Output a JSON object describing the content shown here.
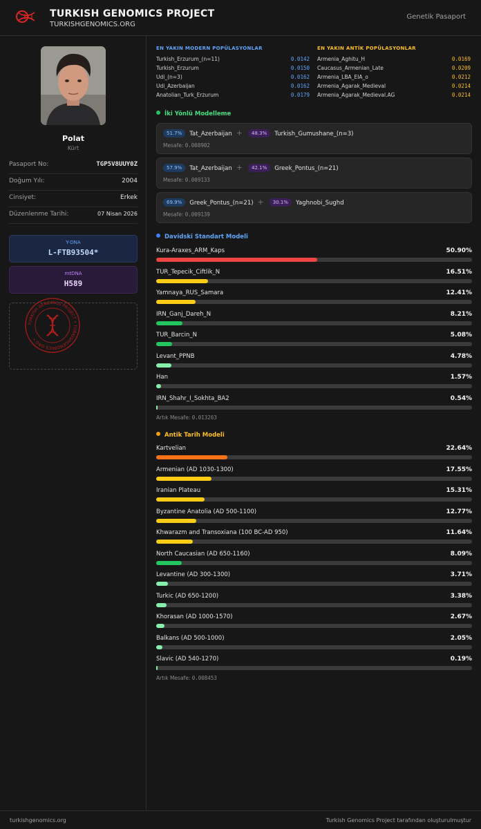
{
  "header": {
    "brand_title": "TURKISH GENOMICS PROJECT",
    "brand_url": "TURKISHGENOMICS.ORG",
    "right_label": "Genetik Pasaport"
  },
  "profile": {
    "name": "Polat",
    "ethnicity": "Kürt"
  },
  "info": [
    {
      "label": "Pasaport No:",
      "value": "TGP5V8UUY0Z"
    },
    {
      "label": "Doğum Yılı:",
      "value": "2004"
    },
    {
      "label": "Cinsiyet:",
      "value": "Erkek"
    },
    {
      "label": "Düzenlenme Tarihi:",
      "value": "07 Nisan 2026"
    }
  ],
  "ydna": {
    "label": "Y-DNA",
    "value": "L-FTB93504*"
  },
  "mtdna": {
    "label": "mtDNA",
    "value": "H589"
  },
  "seal": {
    "text": "TURKISH GENOMICS PROJECT • TURKISHGENOMICS.ORG •"
  },
  "modern": {
    "title": "EN YAKIN MODERN POPÜLASYONLAR",
    "rows": [
      {
        "name": "Turkish_Erzurum_(n=11)",
        "value": "0.0142"
      },
      {
        "name": "Turkish_Erzurum",
        "value": "0.0150"
      },
      {
        "name": "Udi_(n=3)",
        "value": "0.0162"
      },
      {
        "name": "Udi_Azerbaijan",
        "value": "0.0162"
      },
      {
        "name": "Anatolian_Turk_Erzurum",
        "value": "0.0179"
      }
    ]
  },
  "ancient": {
    "title": "EN YAKIN ANTİK POPÜLASYONLAR",
    "rows": [
      {
        "name": "Armenia_Aghitu_H",
        "value": "0.0169"
      },
      {
        "name": "Caucasus_Armenian_Late",
        "value": "0.0209"
      },
      {
        "name": "Armenia_LBA_EIA_o",
        "value": "0.0212"
      },
      {
        "name": "Armenia_Agarak_Medieval",
        "value": "0.0214"
      },
      {
        "name": "Armenia_Agarak_Medieval.AG",
        "value": "0.0214"
      }
    ]
  },
  "two_way": {
    "title": "İki Yönlü Modelleme",
    "color": "#22c55e",
    "cards": [
      {
        "p1": "51.7%",
        "n1": "Tat_Azerbaijan",
        "p2": "48.3%",
        "n2": "Turkish_Gumushane_(n=3)",
        "dist_label": "Mesafe:",
        "dist": "0.008902"
      },
      {
        "p1": "57.9%",
        "n1": "Tat_Azerbaijan",
        "p2": "42.1%",
        "n2": "Greek_Pontus_(n=21)",
        "dist_label": "Mesafe:",
        "dist": "0.009133"
      },
      {
        "p1": "69.9%",
        "n1": "Greek_Pontus_(n=21)",
        "p2": "30.1%",
        "n2": "Yaghnobi_Sughd",
        "dist_label": "Mesafe:",
        "dist": "0.009139"
      }
    ]
  },
  "davidski": {
    "title": "Davidski Standart Modeli",
    "color": "#3b82f6",
    "residual_label": "Artık Mesafe:",
    "residual": "0.013263",
    "items": [
      {
        "name": "Kura-Araxes_ARM_Kaps",
        "value": 50.9,
        "label": "50.90%",
        "color": "#ef4444"
      },
      {
        "name": "TUR_Tepecik_Ciftlik_N",
        "value": 16.51,
        "label": "16.51%",
        "color": "#facc15"
      },
      {
        "name": "Yamnaya_RUS_Samara",
        "value": 12.41,
        "label": "12.41%",
        "color": "#facc15"
      },
      {
        "name": "IRN_Ganj_Dareh_N",
        "value": 8.21,
        "label": "8.21%",
        "color": "#22c55e"
      },
      {
        "name": "TUR_Barcin_N",
        "value": 5.08,
        "label": "5.08%",
        "color": "#22c55e"
      },
      {
        "name": "Levant_PPNB",
        "value": 4.78,
        "label": "4.78%",
        "color": "#86efac"
      },
      {
        "name": "Han",
        "value": 1.57,
        "label": "1.57%",
        "color": "#86efac"
      },
      {
        "name": "IRN_Shahr_I_Sokhta_BA2",
        "value": 0.54,
        "label": "0.54%",
        "color": "#86efac"
      }
    ]
  },
  "antik": {
    "title": "Antik Tarih Modeli",
    "color": "#f59e0b",
    "residual_label": "Artık Mesafe:",
    "residual": "0.008453",
    "items": [
      {
        "name": "Kartvelian",
        "value": 22.64,
        "label": "22.64%",
        "color": "#f97316"
      },
      {
        "name": "Armenian (AD 1030-1300)",
        "value": 17.55,
        "label": "17.55%",
        "color": "#facc15"
      },
      {
        "name": "Iranian Plateau",
        "value": 15.31,
        "label": "15.31%",
        "color": "#facc15"
      },
      {
        "name": "Byzantine Anatolia (AD 500-1100)",
        "value": 12.77,
        "label": "12.77%",
        "color": "#facc15"
      },
      {
        "name": "Khwarazm and Transoxiana (100 BC-AD 950)",
        "value": 11.64,
        "label": "11.64%",
        "color": "#facc15"
      },
      {
        "name": "North Caucasian (AD 650-1160)",
        "value": 8.09,
        "label": "8.09%",
        "color": "#22c55e"
      },
      {
        "name": "Levantine (AD 300-1300)",
        "value": 3.71,
        "label": "3.71%",
        "color": "#86efac"
      },
      {
        "name": "Turkic (AD 650-1200)",
        "value": 3.38,
        "label": "3.38%",
        "color": "#86efac"
      },
      {
        "name": "Khorasan (AD 1000-1570)",
        "value": 2.67,
        "label": "2.67%",
        "color": "#86efac"
      },
      {
        "name": "Balkans (AD 500-1000)",
        "value": 2.05,
        "label": "2.05%",
        "color": "#86efac"
      },
      {
        "name": "Slavic (AD 540-1270)",
        "value": 0.19,
        "label": "0.19%",
        "color": "#86efac"
      }
    ]
  },
  "footer": {
    "left": "turkishgenomics.org",
    "right": "Turkish Genomics Project tarafından oluşturulmuştur"
  }
}
